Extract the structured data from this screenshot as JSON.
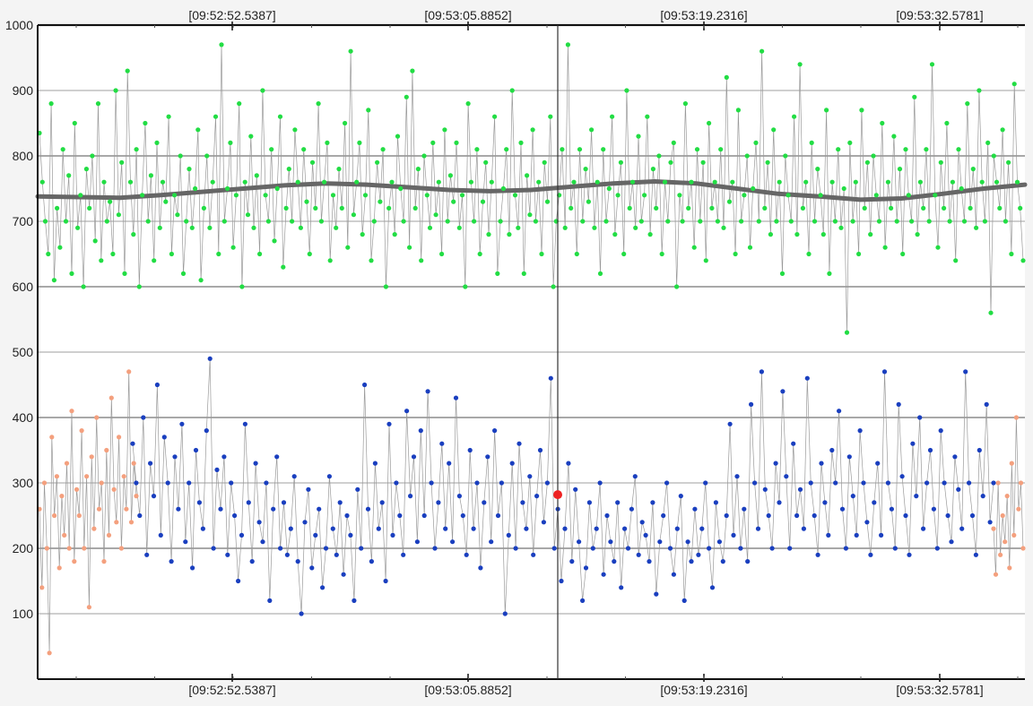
{
  "chart_data": {
    "type": "scatter",
    "title": "",
    "xlabel": "",
    "ylabel": "",
    "x_tick_labels": [
      "[09:52:52.5387]",
      "[09:53:05.8852]",
      "[09:53:19.2316]",
      "[09:53:32.5781]"
    ],
    "y_ticks": [
      100,
      200,
      300,
      400,
      500,
      600,
      700,
      800,
      900,
      1000
    ],
    "ylim": [
      0,
      1000
    ],
    "xlim_seconds_estimated": [
      42,
      86
    ],
    "grid": true,
    "legend": "none",
    "series": [
      {
        "color": "#22dd44",
        "description": "upper point series, values approx 530-970, mean approx 750 (sampled)",
        "values": [
          835,
          760,
          700,
          650,
          880,
          610,
          720,
          660,
          810,
          700,
          770,
          620,
          850,
          690,
          740,
          600,
          780,
          720,
          800,
          670,
          880,
          640,
          760,
          700,
          730,
          650,
          900,
          710,
          790,
          620,
          930,
          760,
          680,
          810,
          600,
          740,
          850,
          700,
          770,
          640,
          820,
          690,
          760,
          730,
          860,
          650,
          740,
          710,
          800,
          620,
          700,
          780,
          690,
          750,
          840,
          610,
          720,
          800,
          690,
          760,
          860,
          650,
          970,
          700,
          750,
          820,
          660,
          740,
          880,
          600,
          760,
          710,
          830,
          690,
          770,
          650,
          900,
          740,
          700,
          810,
          670,
          750,
          860,
          630,
          720,
          780,
          700,
          840,
          760,
          690,
          810,
          730,
          650,
          790,
          720,
          880,
          700,
          760,
          820,
          640,
          740,
          690,
          780,
          720,
          850,
          660,
          960,
          710,
          760,
          820,
          680,
          740,
          870,
          640,
          700,
          790,
          730,
          810,
          600,
          720,
          760,
          680,
          830,
          750,
          700,
          890,
          660,
          930,
          720,
          780,
          640,
          800,
          740,
          690,
          820,
          710,
          760,
          650,
          840,
          700,
          770,
          730,
          820,
          690,
          740,
          600,
          880,
          760,
          700,
          810,
          650,
          730,
          790,
          680,
          760,
          860,
          620,
          700,
          750,
          810,
          680,
          900,
          740,
          690,
          820,
          620,
          770,
          710,
          840,
          700,
          760,
          650,
          790,
          730,
          860,
          600,
          700,
          740,
          810,
          690,
          970,
          720,
          760,
          650,
          810,
          700,
          780,
          730,
          840,
          690,
          760,
          620,
          810,
          700,
          750,
          860,
          680,
          740,
          790,
          650,
          900,
          720,
          760,
          690,
          830,
          700,
          740,
          860,
          680,
          780,
          720,
          800,
          650,
          760,
          700,
          790,
          820,
          600,
          740,
          700,
          880,
          720,
          760,
          660,
          810,
          700,
          790,
          640,
          850,
          720,
          760,
          700,
          810,
          690,
          920,
          730,
          760,
          650,
          870,
          700,
          740,
          800,
          660,
          750,
          820,
          700,
          960,
          720,
          790,
          680,
          840,
          700,
          760,
          620,
          800,
          740,
          700,
          860,
          680,
          940,
          720,
          760,
          650,
          820,
          700,
          780,
          740,
          680,
          870,
          620,
          760,
          700,
          810,
          690,
          750,
          530,
          820,
          700,
          760,
          650,
          870,
          720,
          790,
          680,
          800,
          740,
          700,
          850,
          660,
          760,
          720,
          830,
          700,
          780,
          650,
          810,
          740,
          700,
          890,
          680,
          760,
          720,
          810,
          700,
          940,
          740,
          660,
          790,
          720,
          850,
          700,
          760,
          640,
          810,
          750,
          700,
          880,
          720,
          780,
          690,
          900,
          760,
          700,
          820,
          560,
          800,
          760,
          720,
          840,
          700,
          790,
          650,
          910,
          760,
          720,
          640
        ]
      },
      {
        "color": "#1a3fbf",
        "description": "lower point series, values approx 80-490 (sampled)",
        "values": [
          360,
          300,
          250,
          400,
          190,
          330,
          280,
          450,
          220,
          370,
          300,
          180,
          340,
          260,
          390,
          210,
          300,
          170,
          350,
          270,
          230,
          380,
          490,
          200,
          320,
          260,
          340,
          190,
          300,
          250,
          150,
          220,
          390,
          270,
          180,
          330,
          240,
          210,
          300,
          120,
          260,
          340,
          200,
          270,
          190,
          230,
          310,
          180,
          100,
          240,
          290,
          170,
          220,
          260,
          140,
          200,
          310,
          230,
          190,
          270,
          160,
          250,
          220,
          120,
          290,
          200,
          450,
          260,
          180,
          330,
          230,
          270,
          150,
          390,
          220,
          300,
          250,
          190,
          410,
          280,
          340,
          210,
          380,
          250,
          440,
          300,
          200,
          270,
          360,
          230,
          330,
          210,
          430,
          280,
          250,
          190,
          350,
          230,
          300,
          170,
          270,
          340,
          210,
          380,
          250,
          300,
          100,
          220,
          330,
          200,
          360,
          270,
          230,
          310,
          190,
          280,
          350,
          240,
          300,
          460,
          200,
          260,
          150,
          230,
          330,
          180,
          290,
          210,
          120,
          170,
          270,
          200,
          230,
          300,
          160,
          250,
          210,
          180,
          270,
          140,
          230,
          200,
          260,
          310,
          190,
          240,
          220,
          180,
          270,
          130,
          210,
          250,
          300,
          200,
          160,
          230,
          280,
          120,
          210,
          180,
          260,
          190,
          230,
          300,
          200,
          140,
          270,
          210,
          180,
          250,
          390,
          220,
          310,
          200,
          260,
          180,
          420,
          300,
          230,
          470,
          290,
          250,
          200,
          330,
          270,
          440,
          310,
          200,
          360,
          250,
          290,
          230,
          460,
          300,
          250,
          190,
          330,
          270,
          220,
          350,
          300,
          410,
          260,
          200,
          340,
          280,
          220,
          380,
          300,
          240,
          190,
          270,
          330,
          220,
          470,
          300,
          260,
          200,
          420,
          310,
          250,
          190,
          360,
          280,
          400,
          230,
          300,
          350,
          260,
          200,
          380,
          300,
          250,
          210,
          340,
          290,
          230,
          470,
          300,
          250,
          190,
          350,
          280,
          420,
          240,
          300
        ]
      },
      {
        "color": "#f4a07e",
        "description": "left edge salmon points (sampled)",
        "values": [
          260,
          140,
          300,
          200,
          40,
          370,
          250,
          310,
          170,
          280,
          220,
          330,
          200,
          410,
          180,
          290,
          250,
          380,
          200,
          310,
          110,
          340,
          230,
          400,
          260,
          300,
          180,
          350,
          220,
          430,
          290,
          240,
          370,
          200,
          310,
          260,
          470,
          240,
          330,
          280
        ]
      },
      {
        "color": "#f4a07e",
        "description": "right edge salmon points (sampled)",
        "values": [
          230,
          160,
          300,
          190,
          250,
          210,
          280,
          170,
          330,
          220,
          400,
          260,
          300,
          200
        ]
      }
    ],
    "moving_average": {
      "color": "#666666",
      "description": "smoothed trend line through the upper series",
      "values": [
        738,
        737,
        736,
        740,
        745,
        750,
        755,
        758,
        756,
        752,
        748,
        746,
        748,
        753,
        758,
        761,
        758,
        750,
        742,
        738,
        733,
        735,
        742,
        750,
        756
      ]
    },
    "cursor": {
      "x_label_between": [
        "[09:53:05.8852]",
        "[09:53:19.2316]"
      ],
      "marker_value": 282,
      "marker_color": "#ee2222"
    }
  }
}
